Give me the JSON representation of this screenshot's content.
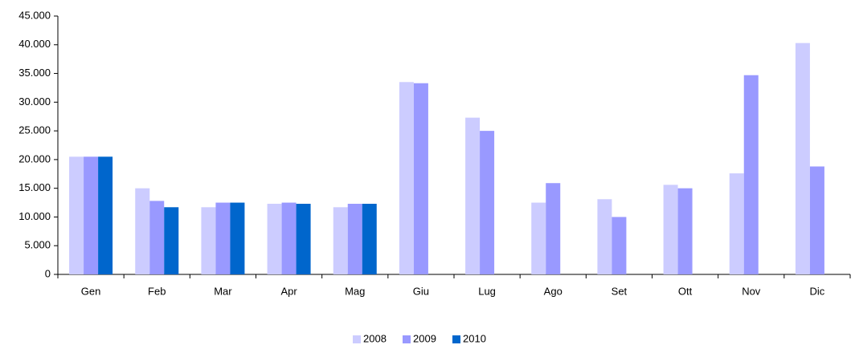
{
  "chart_data": {
    "type": "bar",
    "categories": [
      "Gen",
      "Feb",
      "Mar",
      "Apr",
      "Mag",
      "Giu",
      "Lug",
      "Ago",
      "Set",
      "Ott",
      "Nov",
      "Dic"
    ],
    "series": [
      {
        "name": "2008",
        "color": "#ccccff",
        "values": [
          20500,
          15000,
          11700,
          12300,
          11700,
          33500,
          27300,
          12500,
          13100,
          15600,
          17600,
          40300
        ]
      },
      {
        "name": "2009",
        "color": "#9999ff",
        "values": [
          20500,
          12800,
          12500,
          12500,
          12300,
          33300,
          25000,
          15900,
          10000,
          15000,
          34700,
          18800
        ]
      },
      {
        "name": "2010",
        "color": "#0066cc",
        "values": [
          20500,
          11700,
          12500,
          12300,
          12300,
          null,
          null,
          null,
          null,
          null,
          null,
          null
        ]
      }
    ],
    "ylim": [
      0,
      45000
    ],
    "yticks": [
      0,
      {
        "value": 5000,
        "label": "5.000"
      },
      {
        "value": 10000,
        "label": "10.000"
      },
      {
        "value": 15000,
        "label": "15.000"
      },
      {
        "value": 20000,
        "label": "20.000"
      },
      {
        "value": 25000,
        "label": "25.000"
      },
      {
        "value": 30000,
        "label": "30.000"
      },
      {
        "value": 35000,
        "label": "35.000"
      },
      {
        "value": 40000,
        "label": "40.000"
      },
      {
        "value": 45000,
        "label": "45.000"
      }
    ],
    "grid": false,
    "legend": "bottom"
  }
}
